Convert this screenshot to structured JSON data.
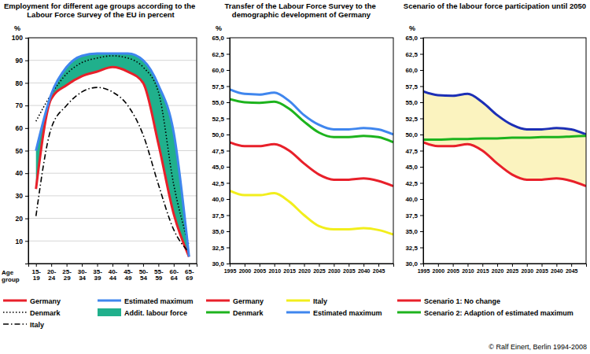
{
  "chart_data": [
    {
      "type": "line",
      "title": "Employment for different age groups according to the Labour Force Survey of the EU in percent",
      "x_label": "Age group",
      "y_label": "%",
      "categories": [
        "15-19",
        "20-24",
        "25-29",
        "30-34",
        "35-39",
        "40-44",
        "45-49",
        "50-54",
        "55-59",
        "60-64",
        "65-69"
      ],
      "ylim": [
        0,
        100
      ],
      "yticks": [
        10,
        20,
        30,
        40,
        50,
        60,
        70,
        80,
        90,
        100
      ],
      "grid": true,
      "legend": "bottom",
      "series": [
        {
          "name": "Germany",
          "color": "#e8202a",
          "values": [
            33,
            73,
            79,
            83,
            85,
            87,
            85,
            80,
            53,
            22,
            3
          ]
        },
        {
          "name": "Denmark",
          "color": "#000000",
          "line_style": "dotted",
          "values": [
            63,
            75,
            84,
            89,
            91,
            92,
            91,
            87,
            76,
            35,
            8
          ]
        },
        {
          "name": "Italy",
          "color": "#000000",
          "line_style": "dashdot",
          "values": [
            21,
            60,
            70,
            76,
            78,
            76,
            70,
            57,
            35,
            15,
            5
          ]
        },
        {
          "name": "Estimated maximum",
          "color": "#3f86ee",
          "values": [
            50,
            75,
            87,
            92,
            93,
            93,
            93,
            90,
            79,
            58,
            3
          ]
        },
        {
          "name": "Addit. labour force",
          "type": "area",
          "stacked": true,
          "color": "#20b08c",
          "values": [
            17,
            2,
            8,
            9,
            8,
            6,
            8,
            10,
            26,
            36,
            0
          ]
        }
      ]
    },
    {
      "type": "line",
      "title": "Transfer of the Labour Force Survey to the demographic development of Germany",
      "y_label": "%",
      "x": [
        1995,
        2000,
        2005,
        2010,
        2015,
        2020,
        2025,
        2030,
        2035,
        2040,
        2045,
        2050
      ],
      "xlim": [
        1995,
        2050
      ],
      "xticks": [
        1995,
        2000,
        2005,
        2010,
        2015,
        2020,
        2025,
        2030,
        2035,
        2040,
        2045
      ],
      "ylim": [
        30,
        65
      ],
      "yticks": [
        {
          "value": 30,
          "label": "30,0"
        },
        {
          "value": 32.5,
          "label": "32,5"
        },
        {
          "value": 35,
          "label": "35,0"
        },
        {
          "value": 37.5,
          "label": "37,5"
        },
        {
          "value": 40,
          "label": "40,0"
        },
        {
          "value": 42.5,
          "label": "42,5"
        },
        {
          "value": 45,
          "label": "45,0"
        },
        {
          "value": 47.5,
          "label": "47,5"
        },
        {
          "value": 50,
          "label": "50,0"
        },
        {
          "value": 52.5,
          "label": "52,5"
        },
        {
          "value": 55,
          "label": "55,0"
        },
        {
          "value": 57.5,
          "label": "57,5"
        },
        {
          "value": 60,
          "label": "60,0"
        },
        {
          "value": 62.5,
          "label": "62,5"
        },
        {
          "value": 65,
          "label": "65,0"
        }
      ],
      "grid": false,
      "legend": "bottom",
      "series": [
        {
          "name": "Germany",
          "color": "#e8202a",
          "values": [
            48.8,
            48.2,
            48.2,
            48.5,
            47.5,
            45.5,
            43.8,
            43.0,
            43.0,
            43.2,
            42.8,
            42.0
          ]
        },
        {
          "name": "Denmark",
          "color": "#1db31d",
          "values": [
            55.5,
            55.0,
            54.9,
            55.1,
            54.0,
            52.0,
            50.3,
            49.6,
            49.6,
            49.8,
            49.6,
            48.8
          ]
        },
        {
          "name": "Italy",
          "color": "#f2ee1c",
          "values": [
            41.3,
            40.6,
            40.6,
            40.9,
            39.6,
            37.5,
            35.8,
            35.3,
            35.3,
            35.5,
            35.2,
            34.5
          ]
        },
        {
          "name": "Estimated maximum",
          "color": "#3f86ee",
          "values": [
            57.0,
            56.3,
            56.2,
            56.5,
            55.2,
            53.0,
            51.5,
            50.8,
            50.8,
            51.0,
            50.8,
            50.0
          ]
        }
      ]
    },
    {
      "type": "line",
      "title": "Scenario of the labour force participation until 2050",
      "y_label": "%",
      "x": [
        1995,
        2000,
        2005,
        2010,
        2015,
        2020,
        2025,
        2030,
        2035,
        2040,
        2045,
        2050
      ],
      "xlim": [
        1995,
        2050
      ],
      "xticks": [
        1995,
        2000,
        2005,
        2010,
        2015,
        2020,
        2025,
        2030,
        2035,
        2040,
        2045
      ],
      "ylim": [
        30,
        65
      ],
      "yticks": [
        {
          "value": 30,
          "label": "30,0"
        },
        {
          "value": 32.5,
          "label": "32,5"
        },
        {
          "value": 35,
          "label": "35,0"
        },
        {
          "value": 37.5,
          "label": "37,5"
        },
        {
          "value": 40,
          "label": "40,0"
        },
        {
          "value": 42.5,
          "label": "42,5"
        },
        {
          "value": 45,
          "label": "45,0"
        },
        {
          "value": 47.5,
          "label": "47,5"
        },
        {
          "value": 50,
          "label": "50,0"
        },
        {
          "value": 52.5,
          "label": "52,5"
        },
        {
          "value": 55,
          "label": "55,0"
        },
        {
          "value": 57.5,
          "label": "57,5"
        },
        {
          "value": 60,
          "label": "60,0"
        },
        {
          "value": 62.5,
          "label": "62,5"
        },
        {
          "value": 65,
          "label": "65,0"
        }
      ],
      "grid": false,
      "legend": "bottom",
      "series": [
        {
          "color": "#1c2fb5",
          "values": [
            56.7,
            56.1,
            56.0,
            56.3,
            55.0,
            53.0,
            51.5,
            50.8,
            50.8,
            51.0,
            50.8,
            50.0
          ]
        },
        {
          "name": "Scenario 1: No change",
          "color": "#e8202a",
          "values": [
            48.8,
            48.2,
            48.2,
            48.5,
            47.5,
            45.5,
            43.8,
            43.0,
            43.0,
            43.2,
            42.8,
            42.0
          ]
        },
        {
          "name": "Scenario 2: Adaption of estimated maximum",
          "color": "#1db31d",
          "values": [
            49.2,
            49.2,
            49.3,
            49.3,
            49.4,
            49.4,
            49.5,
            49.5,
            49.6,
            49.6,
            49.7,
            49.8
          ]
        }
      ]
    }
  ],
  "credit": "© Ralf Einert, Berlin 1994-2008"
}
